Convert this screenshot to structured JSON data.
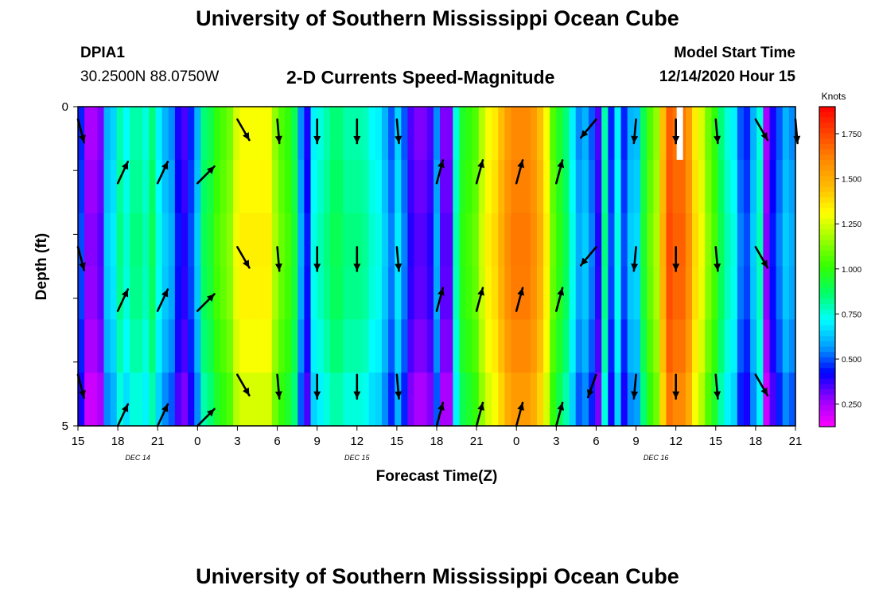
{
  "header": {
    "title": "University of Southern Mississippi Ocean Cube",
    "station_id": "DPIA1",
    "station_coords": "30.2500N 88.0750W",
    "chart_title": "2-D Currents Speed-Magnitude",
    "model_start_label": "Model Start Time",
    "model_start_value": "12/14/2020 Hour 15"
  },
  "footer": {
    "title": "University of Southern Mississippi Ocean Cube"
  },
  "chart_data": {
    "type": "heatmap",
    "title": "2-D Currents Speed-Magnitude",
    "xlabel": "Forecast Time(Z)",
    "ylabel": "Depth (ft)",
    "x_tick_labels": [
      "15",
      "18",
      "21",
      "0",
      "3",
      "6",
      "9",
      "12",
      "15",
      "18",
      "21",
      "0",
      "3",
      "6",
      "9",
      "12",
      "15",
      "18",
      "21"
    ],
    "x_hours": [
      0,
      54
    ],
    "date_labels": [
      {
        "text": "DEC 14",
        "hour": 4.5
      },
      {
        "text": "DEC 15",
        "hour": 21
      },
      {
        "text": "DEC 16",
        "hour": 43.5
      }
    ],
    "y_tick_labels": [
      "0",
      "5"
    ],
    "ylim": [
      0,
      5
    ],
    "colorbar": {
      "unit": "Knots",
      "ticks": [
        "1.750",
        "1.500",
        "1.250",
        "1.000",
        "0.750",
        "0.500",
        "0.250"
      ],
      "tick_values": [
        1.75,
        1.5,
        1.25,
        1.0,
        0.75,
        0.5,
        0.25
      ],
      "range": [
        0.125,
        1.9
      ],
      "colors": [
        "#ff00ff",
        "#9900ff",
        "#0000ff",
        "#00a0ff",
        "#00ffff",
        "#00ff66",
        "#33ff00",
        "#99ff00",
        "#ffff00",
        "#ffbb00",
        "#ff8800",
        "#ff4400",
        "#ff0000"
      ]
    },
    "colors": {
      "missing": "#ffffff",
      "arrow": "#000000"
    },
    "hourly_speed_knots": [
      0.45,
      0.25,
      0.25,
      0.3,
      0.6,
      0.65,
      0.8,
      0.72,
      0.8,
      0.8,
      0.75,
      0.85,
      0.7,
      0.6,
      0.55,
      0.4,
      0.35,
      0.45,
      0.6,
      0.85,
      0.9,
      1.0,
      1.05,
      1.1,
      1.25,
      1.3,
      1.3,
      1.3,
      1.3,
      1.3,
      1.15,
      1.05,
      1.0,
      0.9,
      0.55,
      0.4,
      0.7,
      0.75,
      0.8,
      0.85,
      0.85,
      0.8,
      0.8,
      0.8,
      0.78,
      0.72,
      0.7,
      0.6,
      0.5,
      0.65,
      0.5,
      0.35,
      0.3,
      0.3,
      0.35,
      0.55,
      0.3,
      0.3,
      0.75,
      0.95,
      1.0,
      1.05,
      1.2,
      1.3,
      1.35,
      1.45,
      1.55,
      1.6,
      1.6,
      1.6,
      1.55,
      1.45,
      1.3,
      1.05,
      0.95,
      0.85,
      0.7,
      0.55,
      0.6,
      0.5,
      0.35,
      0.8,
      0.45,
      0.7,
      0.45,
      0.6,
      0.62,
      0.9,
      1.05,
      1.15,
      1.45,
      1.7,
      1.65,
      1.65,
      1.55,
      1.35,
      1.25,
      1.1,
      1.0,
      0.85,
      0.75,
      0.7,
      0.5,
      0.45,
      0.6,
      0.75,
      0.25,
      0.4,
      0.5,
      0.6,
      0.55
    ],
    "depth_layer_offsets": [
      0.0,
      0.02,
      0.04,
      0.03,
      0.0,
      -0.05
    ],
    "missing_cells": [
      {
        "hour": 45,
        "layer": 0
      }
    ],
    "arrow_hours": [
      0,
      3,
      6,
      9,
      12,
      15,
      18,
      21,
      24,
      27,
      30,
      33,
      36,
      39,
      42,
      45,
      48,
      51,
      54
    ],
    "arrow_depths_ft": [
      0.2,
      1.2,
      2.2,
      3.2,
      4.2,
      5.0
    ],
    "arrow_directions_deg": [
      165,
      25,
      25,
      45,
      150,
      175,
      180,
      180,
      175,
      15,
      15,
      15,
      15,
      220,
      185,
      180,
      175,
      150,
      175
    ],
    "arrow_dir_by_row": {
      "0": [
        165,
        null,
        null,
        null,
        150,
        175,
        180,
        180,
        175,
        null,
        null,
        null,
        null,
        220,
        185,
        180,
        175,
        150,
        175
      ],
      "1": [
        null,
        25,
        25,
        45,
        null,
        null,
        null,
        null,
        null,
        15,
        15,
        15,
        15,
        null,
        null,
        null,
        null,
        null,
        null
      ],
      "2": [
        165,
        null,
        null,
        null,
        150,
        175,
        180,
        180,
        175,
        null,
        null,
        null,
        null,
        220,
        185,
        180,
        175,
        150,
        null
      ],
      "3": [
        null,
        25,
        25,
        45,
        null,
        null,
        null,
        null,
        null,
        15,
        15,
        15,
        15,
        null,
        null,
        null,
        null,
        null,
        null
      ],
      "4": [
        165,
        null,
        null,
        null,
        150,
        175,
        180,
        180,
        175,
        null,
        null,
        null,
        null,
        200,
        185,
        180,
        175,
        150,
        null
      ],
      "5": [
        null,
        25,
        25,
        45,
        null,
        null,
        null,
        null,
        null,
        15,
        15,
        15,
        15,
        null,
        null,
        null,
        null,
        null,
        null
      ]
    }
  }
}
